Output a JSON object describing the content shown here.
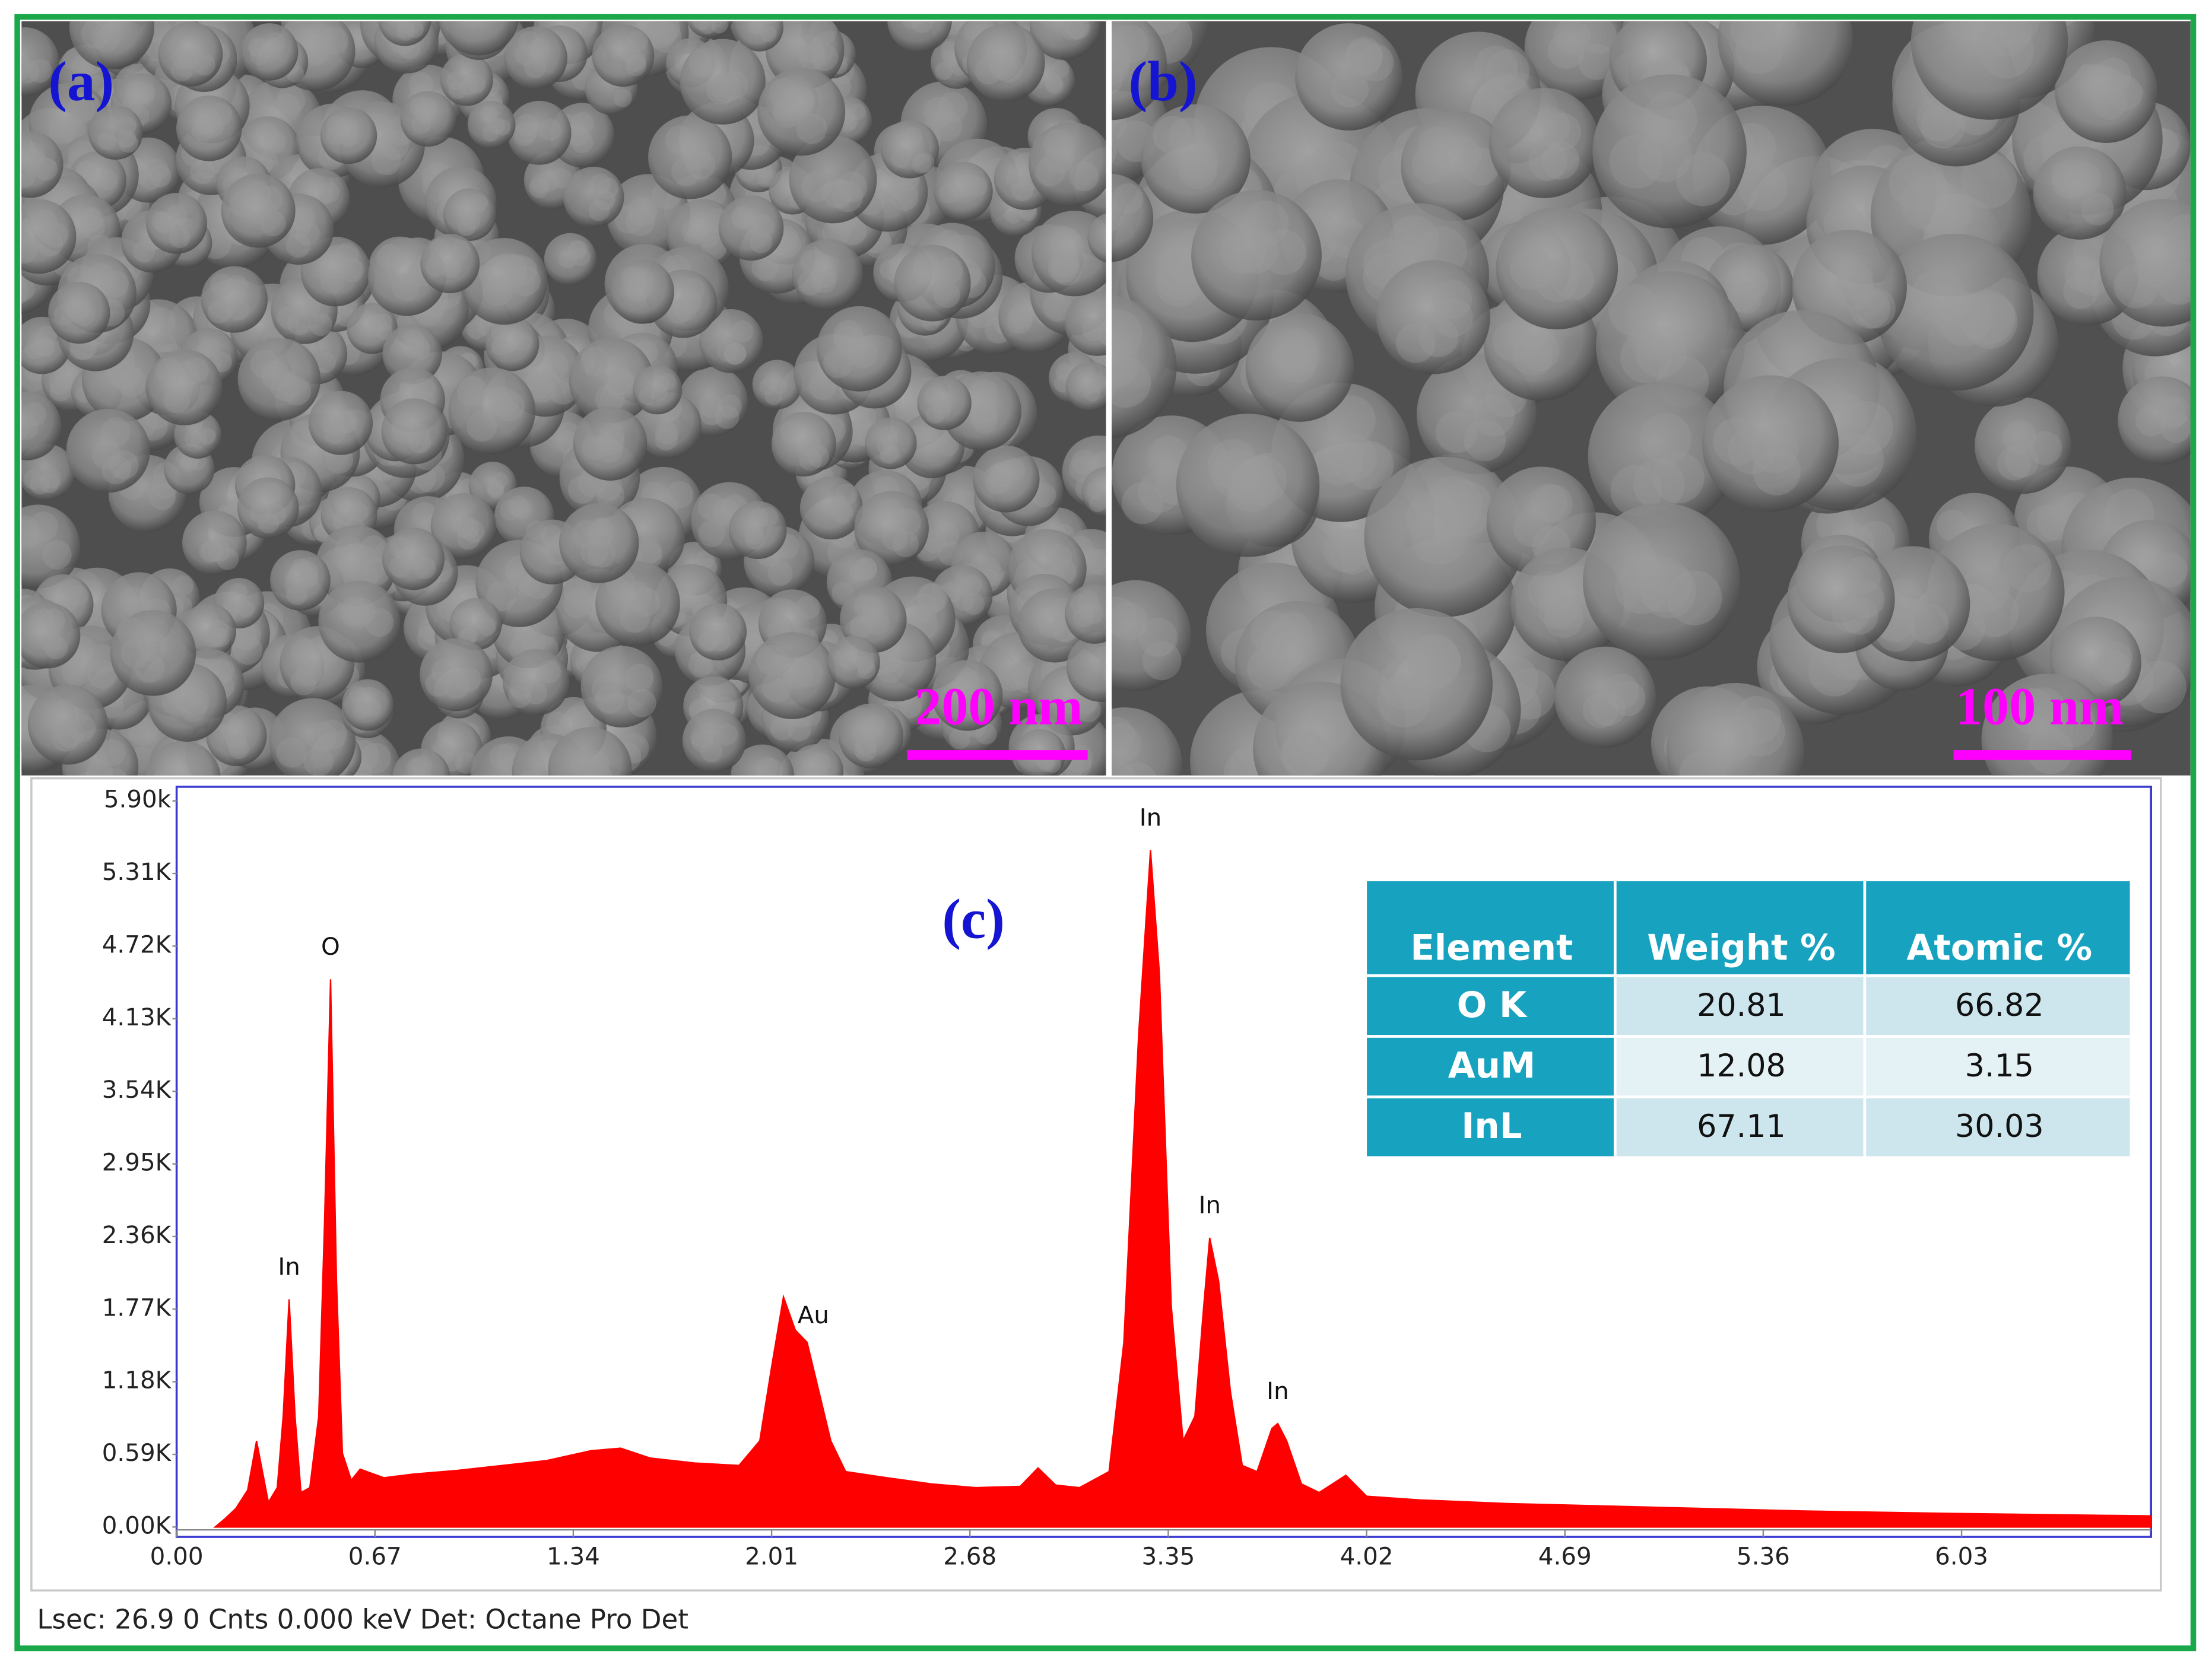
{
  "panels": [
    {
      "label": "(a)",
      "scale_bar": "200 nm"
    },
    {
      "label": "(b)",
      "scale_bar": "100 nm"
    }
  ],
  "chart_data": {
    "type": "area",
    "label": "(c)",
    "color": "#ff0000",
    "x": [
      0.13,
      0.16,
      0.2,
      0.24,
      0.27,
      0.29,
      0.31,
      0.34,
      0.36,
      0.38,
      0.4,
      0.42,
      0.45,
      0.48,
      0.5,
      0.52,
      0.54,
      0.56,
      0.59,
      0.62,
      0.7,
      0.8,
      0.95,
      1.1,
      1.25,
      1.4,
      1.5,
      1.6,
      1.75,
      1.9,
      1.97,
      2.01,
      2.05,
      2.09,
      2.13,
      2.17,
      2.21,
      2.26,
      2.4,
      2.55,
      2.7,
      2.85,
      2.91,
      2.97,
      3.05,
      3.15,
      3.2,
      3.25,
      3.29,
      3.32,
      3.36,
      3.4,
      3.44,
      3.47,
      3.49,
      3.52,
      3.56,
      3.6,
      3.65,
      3.7,
      3.72,
      3.75,
      3.8,
      3.86,
      3.95,
      4.02,
      4.2,
      4.5,
      5.0,
      5.5,
      6.0,
      6.67
    ],
    "values": [
      0,
      60,
      150,
      300,
      700,
      450,
      200,
      320,
      900,
      1850,
      900,
      280,
      320,
      900,
      2500,
      4450,
      2000,
      600,
      380,
      470,
      400,
      430,
      460,
      500,
      540,
      620,
      640,
      560,
      520,
      500,
      700,
      1300,
      1870,
      1600,
      1500,
      1100,
      700,
      450,
      400,
      350,
      320,
      330,
      480,
      340,
      320,
      450,
      1500,
      4000,
      5500,
      4500,
      1800,
      700,
      900,
      1800,
      2350,
      2000,
      1100,
      500,
      450,
      800,
      840,
      700,
      350,
      280,
      420,
      250,
      220,
      190,
      160,
      130,
      110,
      90
    ],
    "xlim": [
      0,
      6.67
    ],
    "ylim": [
      0,
      5900
    ],
    "xticks": [
      {
        "value": 0,
        "label": "0.00"
      },
      0.67,
      1.34,
      2.01,
      2.68,
      3.35,
      4.02,
      4.69,
      5.36,
      6.03
    ],
    "yticks": [
      {
        "value": 0,
        "label": "0.00K"
      },
      {
        "value": 590,
        "label": "0.59K"
      },
      {
        "value": 1180,
        "label": "1.18K"
      },
      {
        "value": 1770,
        "label": "1.77K"
      },
      {
        "value": 2360,
        "label": "2.36K"
      },
      {
        "value": 2950,
        "label": "2.95K"
      },
      {
        "value": 3540,
        "label": "3.54K"
      },
      {
        "value": 4130,
        "label": "4.13K"
      },
      {
        "value": 4720,
        "label": "4.72K"
      },
      {
        "value": 5310,
        "label": "5.31K"
      },
      {
        "value": 5900,
        "label": "5.90k"
      }
    ],
    "annotations": [
      {
        "text": "In",
        "x": 0.38
      },
      {
        "text": "O",
        "x": 0.52
      },
      {
        "text": "Au",
        "x": 2.05
      },
      {
        "text": "In",
        "x": 3.29
      },
      {
        "text": "In",
        "x": 3.49
      },
      {
        "text": "In",
        "x": 3.72
      }
    ],
    "footer": "Lsec: 26.9 0 Cnts  0.000 keV Det: Octane Pro Det",
    "table": {
      "columns": [
        "Element",
        "Weight %",
        "Atomic %"
      ],
      "rows": [
        [
          "O K",
          20.81,
          66.82
        ],
        [
          "AuM",
          12.08,
          3.15
        ],
        [
          "InL",
          67.11,
          30.03
        ]
      ]
    }
  }
}
